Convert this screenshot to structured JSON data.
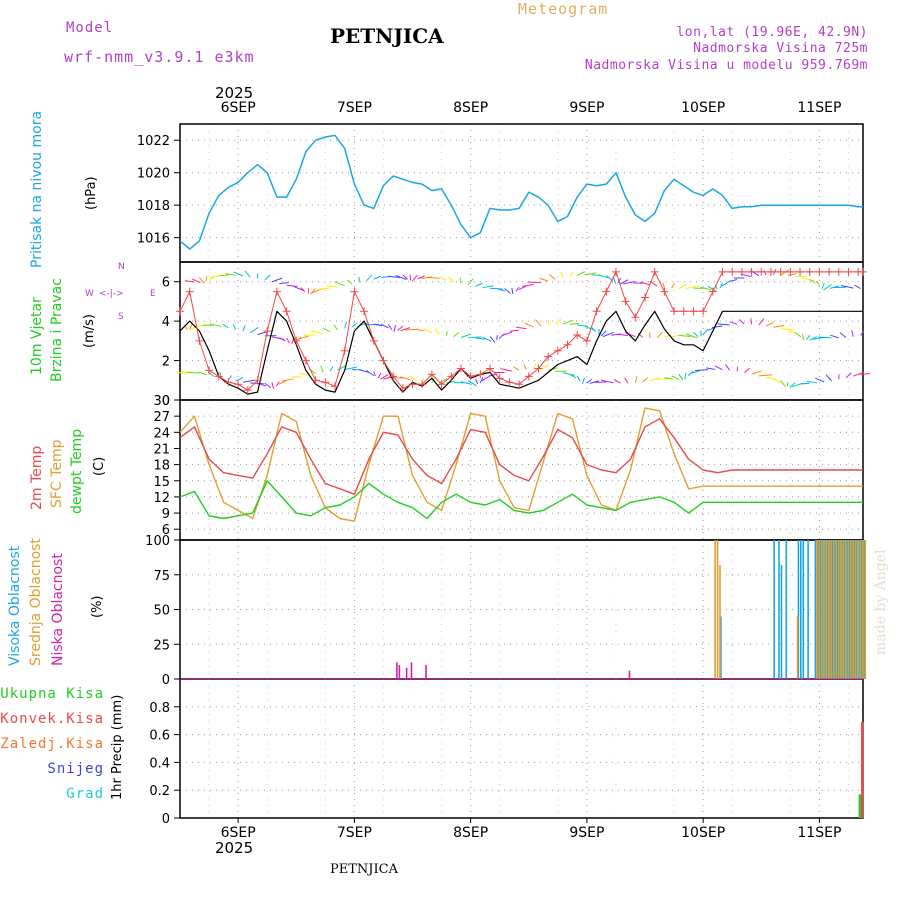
{
  "header": {
    "model_label": "Model",
    "model_value": "wrf-nmm_v3.9.1 e3km",
    "station": "PETNJICA",
    "meteogram": "Meteogram",
    "lonlat": "lon,lat (19.96E, 42.9N)",
    "altitude": "Nadmorska Visina 725m",
    "model_altitude": "Nadmorska Visina u modelu 959.769m",
    "bottom_station": "PETNJICA",
    "credit": "made by Angel",
    "year_top": "2025",
    "year_bottom": "2025",
    "compass": {
      "n": "N",
      "w": "W",
      "e": "E",
      "s": "S",
      "arrows": "<-|->"
    }
  },
  "colors": {
    "pressure": "#1aa6e6",
    "wind_gust": "#f04848",
    "wind_speed": "#000000",
    "temp2m": "#e64a4a",
    "sfc": "#e0a030",
    "dewpt": "#22cc22",
    "cloud_high": "#1aa6e6",
    "cloud_mid": "#e0a030",
    "cloud_low": "#cc22aa",
    "precip_total": "#22cc22",
    "precip_conv": "#f04848",
    "precip_frz": "#f07830",
    "precip_snow": "#4040e0",
    "precip_hail": "#22cccc"
  },
  "chart_data": [
    {
      "type": "line",
      "name": "pressure",
      "title": "Pritisak na nivou mora",
      "ylabel": "(hPa)",
      "ylim": [
        1014.5,
        1023
      ],
      "yticks": [
        1016,
        1018,
        1020,
        1022
      ],
      "xlim": [
        0,
        141
      ],
      "day_labels": [
        "6SEP",
        "7SEP",
        "8SEP",
        "9SEP",
        "10SEP",
        "11SEP"
      ],
      "day_positions": [
        12,
        36,
        60,
        84,
        108,
        132
      ],
      "series": [
        {
          "name": "MSLP",
          "x": [
            0,
            2,
            4,
            6,
            8,
            10,
            12,
            14,
            16,
            18,
            20,
            22,
            24,
            26,
            28,
            30,
            32,
            34,
            36,
            38,
            40,
            42,
            44,
            46,
            48,
            50,
            52,
            54,
            56,
            58,
            60,
            62,
            64,
            66,
            68,
            70,
            72,
            74,
            76,
            78,
            80,
            82,
            84,
            86,
            88,
            90,
            92,
            94,
            96,
            98,
            100,
            102,
            104,
            106,
            108,
            110,
            112,
            114,
            116,
            118,
            120,
            122,
            124,
            126,
            128,
            130,
            132,
            134,
            136,
            138,
            140,
            141
          ],
          "y": [
            1015.8,
            1015.3,
            1015.8,
            1017.5,
            1018.6,
            1019.1,
            1019.4,
            1020.0,
            1020.5,
            1020.0,
            1018.5,
            1018.5,
            1019.6,
            1021.3,
            1022.0,
            1022.2,
            1022.3,
            1021.5,
            1019.3,
            1018.0,
            1017.8,
            1019.2,
            1019.8,
            1019.6,
            1019.4,
            1019.3,
            1018.9,
            1019.0,
            1018.0,
            1016.8,
            1016.0,
            1016.3,
            1017.8,
            1017.7,
            1017.7,
            1017.8,
            1018.8,
            1018.5,
            1018.0,
            1017.0,
            1017.3,
            1018.5,
            1019.3,
            1019.2,
            1019.3,
            1020.0,
            1018.5,
            1017.4,
            1017.0,
            1017.5,
            1018.9,
            1019.6,
            1019.2,
            1018.8,
            1018.6,
            1019.0,
            1018.6,
            1017.8,
            1017.9,
            1017.9,
            1018.0,
            1018.0,
            1018.0,
            1018.0,
            1018.0,
            1018.0,
            1018.0,
            1018.0,
            1018.0,
            1018.0,
            1017.9,
            1017.9
          ]
        }
      ]
    },
    {
      "type": "line",
      "name": "wind",
      "title": "10m Vjetar Brzina i Pravac",
      "ylabel": "(m/s)",
      "ylim": [
        0,
        7
      ],
      "yticks": [
        0,
        2,
        4,
        6
      ],
      "xlim": [
        0,
        141
      ],
      "series": [
        {
          "name": "speed",
          "x": [
            0,
            2,
            4,
            6,
            8,
            10,
            12,
            14,
            16,
            18,
            20,
            22,
            24,
            26,
            28,
            30,
            32,
            34,
            36,
            38,
            40,
            42,
            44,
            46,
            48,
            50,
            52,
            54,
            56,
            58,
            60,
            62,
            64,
            66,
            68,
            70,
            72,
            74,
            76,
            78,
            80,
            82,
            84,
            86,
            88,
            90,
            92,
            94,
            96,
            98,
            100,
            102,
            104,
            106,
            108,
            110,
            112,
            114,
            116,
            118,
            120,
            122,
            124,
            126,
            128,
            130,
            132,
            134,
            136,
            138,
            140,
            141
          ],
          "y": [
            3.5,
            4.0,
            3.5,
            2.5,
            1.2,
            0.8,
            0.6,
            0.3,
            0.4,
            2.5,
            4.5,
            4.0,
            2.8,
            1.5,
            0.8,
            0.5,
            0.4,
            1.5,
            3.5,
            4.0,
            3.0,
            2.0,
            1.0,
            0.4,
            0.9,
            0.7,
            1.1,
            0.5,
            1.0,
            1.6,
            1.1,
            1.3,
            1.4,
            0.8,
            0.7,
            0.6,
            0.8,
            1.0,
            1.4,
            1.8,
            2.0,
            2.2,
            1.8,
            3.0,
            4.0,
            4.5,
            3.5,
            3.0,
            3.8,
            4.5,
            3.6,
            3.0,
            2.8,
            2.8,
            2.5,
            3.5,
            4.5,
            4.5,
            4.5,
            4.5,
            4.5,
            4.5,
            4.5,
            4.5,
            4.5,
            4.5,
            4.5,
            4.5,
            4.5,
            4.5,
            4.5,
            4.5
          ]
        },
        {
          "name": "gust",
          "x": [
            0,
            2,
            4,
            6,
            8,
            10,
            12,
            14,
            16,
            18,
            20,
            22,
            24,
            26,
            28,
            30,
            32,
            34,
            36,
            38,
            40,
            42,
            44,
            46,
            48,
            50,
            52,
            54,
            56,
            58,
            60,
            62,
            64,
            66,
            68,
            70,
            72,
            74,
            76,
            78,
            80,
            82,
            84,
            86,
            88,
            90,
            92,
            94,
            96,
            98,
            100,
            102,
            104,
            106,
            108,
            110,
            112,
            114,
            116,
            118,
            120,
            122,
            124,
            126,
            128,
            130,
            132,
            134,
            136,
            138,
            140,
            141
          ],
          "y": [
            4.5,
            5.5,
            3.0,
            1.5,
            1.2,
            0.9,
            0.8,
            0.5,
            1.0,
            3.5,
            5.5,
            4.5,
            3.0,
            2.0,
            1.0,
            0.9,
            0.7,
            2.5,
            5.5,
            4.5,
            3.0,
            2.0,
            1.2,
            0.6,
            0.8,
            0.8,
            1.3,
            0.8,
            1.2,
            1.6,
            1.2,
            1.3,
            1.6,
            1.1,
            0.9,
            0.8,
            1.2,
            1.6,
            2.2,
            2.5,
            2.8,
            3.3,
            3.0,
            4.5,
            5.5,
            6.5,
            5.0,
            4.2,
            5.2,
            6.5,
            5.5,
            4.5,
            4.5,
            4.5,
            4.5,
            5.5,
            6.5,
            6.5,
            6.5,
            6.5,
            6.5,
            6.5,
            6.5,
            6.5,
            6.5,
            6.5,
            6.5,
            6.5,
            6.5,
            6.5,
            6.5,
            6.5
          ]
        }
      ]
    },
    {
      "type": "line",
      "name": "temperature",
      "title": "2m Temp / SFC Temp / dewpt Temp",
      "ylabel": "(C)",
      "ylim": [
        4,
        30
      ],
      "yticks": [
        6,
        9,
        12,
        15,
        18,
        21,
        24,
        27,
        30
      ],
      "xlim": [
        0,
        141
      ],
      "series": [
        {
          "name": "2m Temp",
          "x": [
            0,
            3,
            6,
            9,
            12,
            15,
            18,
            21,
            24,
            27,
            30,
            33,
            36,
            39,
            42,
            45,
            48,
            51,
            54,
            57,
            60,
            63,
            66,
            69,
            72,
            75,
            78,
            81,
            84,
            87,
            90,
            93,
            96,
            99,
            102,
            105,
            108,
            111,
            114,
            117,
            120,
            123,
            126,
            129,
            132,
            135,
            138,
            141
          ],
          "y": [
            23.0,
            25.0,
            19.0,
            16.5,
            16.0,
            15.5,
            20.0,
            25.0,
            24.0,
            19.0,
            14.5,
            13.5,
            12.5,
            19.0,
            24.0,
            23.5,
            19.0,
            16.0,
            14.5,
            19.0,
            24.5,
            24.0,
            18.0,
            16.0,
            15.0,
            19.5,
            24.5,
            23.0,
            18.0,
            17.0,
            16.5,
            19.0,
            25.0,
            26.5,
            23.0,
            19.0,
            17.0,
            16.5,
            17.0,
            17.0,
            17.0,
            17.0,
            17.0,
            17.0,
            17.0,
            17.0,
            17.0,
            17.0
          ]
        },
        {
          "name": "SFC Temp",
          "x": [
            0,
            3,
            6,
            9,
            12,
            15,
            18,
            21,
            24,
            27,
            30,
            33,
            36,
            39,
            42,
            45,
            48,
            51,
            54,
            57,
            60,
            63,
            66,
            69,
            72,
            75,
            78,
            81,
            84,
            87,
            90,
            93,
            96,
            99,
            102,
            105,
            108,
            111,
            114,
            117,
            120,
            123,
            126,
            129,
            132,
            135,
            138,
            141
          ],
          "y": [
            24.0,
            27.0,
            18.0,
            11.0,
            9.5,
            8.0,
            16.0,
            27.5,
            26.0,
            16.0,
            10.0,
            8.0,
            7.5,
            18.0,
            27.0,
            27.0,
            16.0,
            11.0,
            9.5,
            18.0,
            27.5,
            27.0,
            15.0,
            10.0,
            9.5,
            18.5,
            27.5,
            26.5,
            16.0,
            10.5,
            9.5,
            17.0,
            28.5,
            28.0,
            20.0,
            13.5,
            14.0,
            14.0,
            14.0,
            14.0,
            14.0,
            14.0,
            14.0,
            14.0,
            14.0,
            14.0,
            14.0,
            14.0
          ]
        },
        {
          "name": "dewpt Temp",
          "x": [
            0,
            3,
            6,
            9,
            12,
            15,
            18,
            21,
            24,
            27,
            30,
            33,
            36,
            39,
            42,
            45,
            48,
            51,
            54,
            57,
            60,
            63,
            66,
            69,
            72,
            75,
            78,
            81,
            84,
            87,
            90,
            93,
            96,
            99,
            102,
            105,
            108,
            111,
            114,
            117,
            120,
            123,
            126,
            129,
            132,
            135,
            138,
            141
          ],
          "y": [
            12.0,
            13.0,
            8.5,
            8.0,
            8.5,
            9.0,
            15.0,
            12.0,
            9.0,
            8.5,
            10.0,
            10.5,
            12.0,
            14.5,
            12.5,
            11.0,
            10.0,
            8.0,
            11.0,
            12.5,
            11.0,
            10.5,
            11.5,
            9.5,
            9.0,
            9.5,
            11.0,
            12.5,
            10.5,
            10.0,
            9.5,
            11.0,
            11.5,
            12.0,
            11.0,
            9.0,
            11.0,
            11.0,
            11.0,
            11.0,
            11.0,
            11.0,
            11.0,
            11.0,
            11.0,
            11.0,
            11.0,
            11.0
          ]
        }
      ]
    },
    {
      "type": "bar",
      "name": "clouds",
      "title": "Visoka / Srednja / Niska Oblacnost",
      "ylabel": "(%)",
      "ylim": [
        0,
        100
      ],
      "yticks": [
        0,
        25,
        50,
        75,
        100
      ],
      "xlim": [
        0,
        141
      ],
      "series": [
        {
          "name": "Visoka Oblacnost",
          "x": [
            111.5,
            122.5,
            123.5,
            124,
            125,
            127.5,
            128,
            128.5,
            129.5,
            131,
            131.5,
            132,
            132.5,
            133,
            133.5,
            134,
            134.5,
            135,
            135.5,
            136,
            136.5,
            137,
            137.5,
            138,
            138.5,
            139,
            139.5,
            140,
            140.5,
            141
          ],
          "y": [
            45,
            100,
            100,
            82,
            100,
            100,
            100,
            100,
            100,
            100,
            100,
            100,
            100,
            100,
            100,
            100,
            100,
            100,
            100,
            100,
            100,
            100,
            100,
            100,
            100,
            100,
            100,
            100,
            100,
            100
          ]
        },
        {
          "name": "Srednja Oblacnost",
          "x": [
            110,
            110.5,
            111,
            127,
            131,
            131.5,
            132,
            132.5,
            133,
            133.5,
            134,
            134.5,
            135,
            135.5,
            136,
            136.5,
            137,
            137.5,
            138,
            138.5,
            139,
            139.5,
            140,
            140.5,
            141
          ],
          "y": [
            100,
            100,
            82,
            45,
            100,
            100,
            100,
            100,
            100,
            100,
            100,
            100,
            100,
            100,
            100,
            100,
            100,
            100,
            100,
            100,
            100,
            100,
            100,
            100,
            100
          ]
        },
        {
          "name": "Niska Oblacnost",
          "x": [
            44,
            44.5,
            46,
            47,
            50,
            92
          ],
          "y": [
            12,
            10,
            8,
            12,
            10,
            6
          ]
        }
      ]
    },
    {
      "type": "bar",
      "name": "precipitation",
      "ylabel": "1hr Precip (mm)",
      "ylim": [
        0,
        1.0
      ],
      "yticks": [
        0,
        0.2,
        0.4,
        0.6,
        0.8
      ],
      "xlim": [
        0,
        141
      ],
      "legend": [
        "Ukupna Kisa",
        "Konvek.Kisa",
        "Zaledj.Kisa",
        "Snijeg",
        "Grad"
      ],
      "series": [
        {
          "name": "Ukupna Kisa",
          "x": [
            140.5
          ],
          "y": [
            0.17
          ]
        },
        {
          "name": "Konvek.Kisa",
          "x": [
            141
          ],
          "y": [
            0.69
          ]
        }
      ]
    }
  ]
}
